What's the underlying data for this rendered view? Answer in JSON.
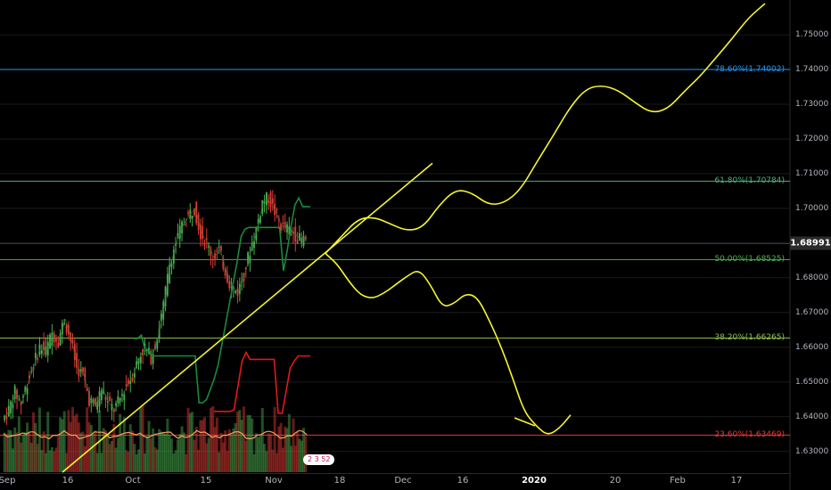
{
  "chart_data": {
    "type": "candlestick",
    "y_axis": {
      "range": [
        1.624,
        1.759
      ],
      "ticks": [
        "1.63000",
        "1.64000",
        "1.65000",
        "1.66000",
        "1.67000",
        "1.68000",
        "1.69000",
        "1.70000",
        "1.71000",
        "1.72000",
        "1.73000",
        "1.74000",
        "1.75000"
      ]
    },
    "x_axis": {
      "ticks": [
        {
          "label": "Sep"
        },
        {
          "label": "16"
        },
        {
          "label": "Oct"
        },
        {
          "label": "15"
        },
        {
          "label": "Nov"
        },
        {
          "label": "18"
        },
        {
          "label": "Dec"
        },
        {
          "label": "16"
        },
        {
          "label": "2020",
          "bold": true
        },
        {
          "label": "20"
        },
        {
          "label": "Feb"
        },
        {
          "label": "17"
        }
      ]
    },
    "current_price": "1.68991",
    "fib_levels": [
      {
        "label": "78.60%(1.74002)",
        "value": 1.74002,
        "color": "#2196f3"
      },
      {
        "label": "61.80%(1.70784)",
        "value": 1.70784,
        "color": "#4caf78"
      },
      {
        "label": "50.00%(1.68525)",
        "value": 1.68525,
        "color": "#4caf50"
      },
      {
        "label": "38.20%(1.66265)",
        "value": 1.66265,
        "color": "#8bc34a"
      },
      {
        "label": "23.60%(1.63469)",
        "value": 1.63469,
        "color": "#e53935"
      }
    ],
    "series": [
      {
        "values": [
          1.639,
          1.642,
          1.647,
          1.644,
          1.65,
          1.655,
          1.66,
          1.659,
          1.664,
          1.662,
          1.668,
          1.662,
          1.654,
          1.652,
          1.645,
          1.643,
          1.648,
          1.644,
          1.642,
          1.645,
          1.649,
          1.652,
          1.657,
          1.66,
          1.657,
          1.663,
          1.672,
          1.684,
          1.69,
          1.695,
          1.698,
          1.7,
          1.693,
          1.69,
          1.686,
          1.688,
          1.682,
          1.677,
          1.676,
          1.681,
          1.688,
          1.694,
          1.702,
          1.703,
          1.699,
          1.695,
          1.694,
          1.693,
          1.691,
          1.691
        ]
      },
      {
        "values": [
          1.6625,
          1.6625,
          1.6635,
          1.659,
          1.659,
          1.6575,
          1.6575,
          1.6575,
          1.6575,
          1.6575,
          1.6575,
          1.6575,
          1.6575,
          1.6575,
          1.6575,
          1.6575,
          1.6575,
          1.644,
          1.644,
          1.645,
          1.648,
          1.651,
          1.655,
          1.661,
          1.667,
          1.673,
          1.679,
          1.685,
          1.692,
          1.694,
          1.6945,
          1.6945,
          1.6945,
          1.6945,
          1.6945,
          1.6945,
          1.6945,
          1.6945,
          1.6945,
          1.682,
          1.688,
          1.695,
          1.701,
          1.703,
          1.7005,
          1.7005,
          1.7005
        ]
      },
      {
        "values": [
          1.6415,
          1.6415,
          1.6415,
          1.6415,
          1.6415,
          1.642,
          1.649,
          1.656,
          1.6585,
          1.6565,
          1.6565,
          1.6565,
          1.6565,
          1.6565,
          1.6565,
          1.6565,
          1.641,
          1.641,
          1.6475,
          1.654,
          1.656,
          1.6575,
          1.6575,
          1.6575,
          1.6575
        ]
      }
    ],
    "annotations": [
      {
        "type": "trendline",
        "points": [
          [
            1.624,
            0
          ],
          [
            1.713,
            1
          ]
        ]
      },
      {
        "type": "projection_up",
        "points": [
          1.687,
          1.692,
          1.697,
          1.6975,
          1.6955,
          1.6935,
          1.6945,
          1.701,
          1.7055,
          1.7045,
          1.701,
          1.7015,
          1.7055,
          1.7135,
          1.721,
          1.729,
          1.7345,
          1.7355,
          1.734,
          1.7305,
          1.7275,
          1.7285,
          1.7335,
          1.738,
          1.7435,
          1.749,
          1.755,
          1.759
        ]
      },
      {
        "type": "projection_down",
        "points": [
          1.687,
          1.684,
          1.679,
          1.675,
          1.674,
          1.6755,
          1.678,
          1.6805,
          1.6825,
          1.678,
          1.6715,
          1.6725,
          1.6755,
          1.6745,
          1.668,
          1.6605,
          1.6515,
          1.6415,
          1.6375,
          1.6345,
          1.6365,
          1.6405
        ]
      }
    ],
    "badge": "2  3  52"
  },
  "colors": {
    "background": "#000000",
    "grid": "#1a1a1a",
    "candle_up": "#4caf50",
    "candle_down": "#e53935",
    "yellow": "#f5f531",
    "volume_line": "#f4a261"
  }
}
